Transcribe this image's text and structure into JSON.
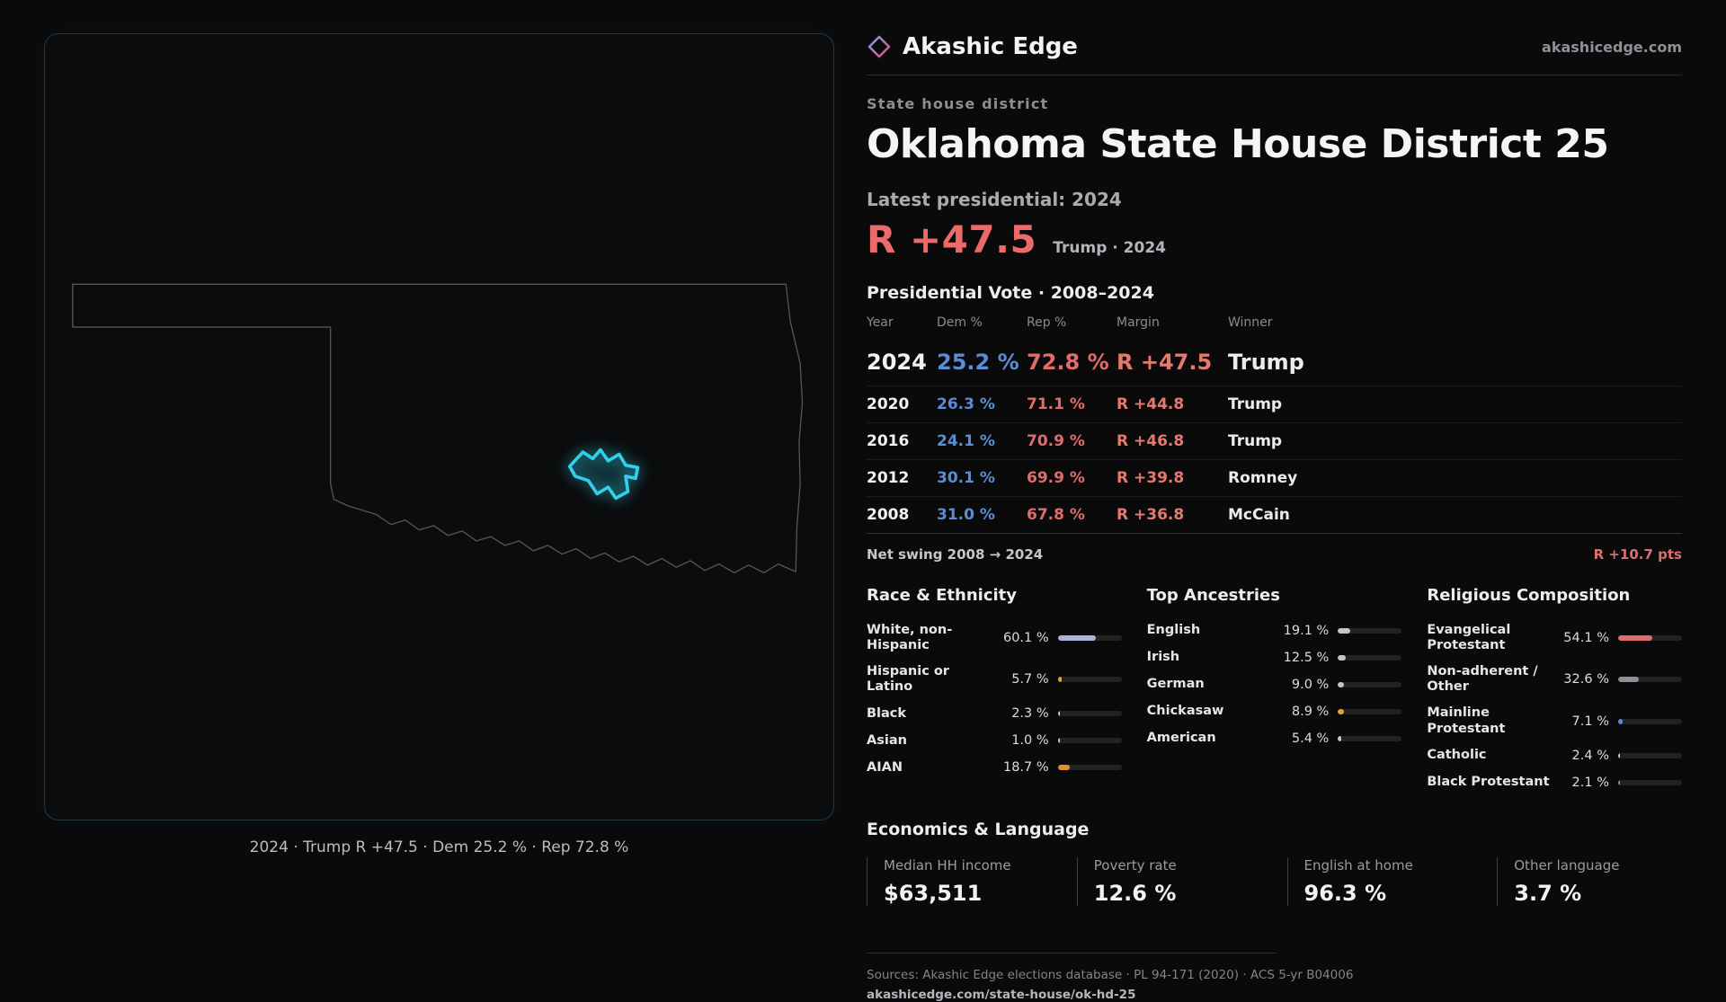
{
  "header": {
    "brand": "Akashic Edge",
    "site": "akashicedge.com",
    "kicker": "State house district",
    "title": "Oklahoma State House District 25"
  },
  "latest": {
    "label": "Latest presidential: 2024",
    "margin": "R +47.5",
    "detail": "Trump · 2024"
  },
  "map": {
    "caption": "2024 · Trump R +47.5 · Dem 25.2 % · Rep 72.8 %"
  },
  "vote_table": {
    "title": "Presidential Vote · 2008–2024",
    "columns": {
      "year": "Year",
      "dem": "Dem %",
      "rep": "Rep %",
      "margin": "Margin",
      "winner": "Winner"
    },
    "rows": [
      {
        "year": "2024",
        "dem": "25.2 %",
        "rep": "72.8 %",
        "margin": "R +47.5",
        "winner": "Trump"
      },
      {
        "year": "2020",
        "dem": "26.3 %",
        "rep": "71.1 %",
        "margin": "R +44.8",
        "winner": "Trump"
      },
      {
        "year": "2016",
        "dem": "24.1 %",
        "rep": "70.9 %",
        "margin": "R +46.8",
        "winner": "Trump"
      },
      {
        "year": "2012",
        "dem": "30.1 %",
        "rep": "69.9 %",
        "margin": "R +39.8",
        "winner": "Romney"
      },
      {
        "year": "2008",
        "dem": "31.0 %",
        "rep": "67.8 %",
        "margin": "R +36.8",
        "winner": "McCain"
      }
    ],
    "net_swing_label": "Net swing 2008 → 2024",
    "net_swing_value": "R +10.7 pts"
  },
  "demographics": {
    "race": {
      "title": "Race & Ethnicity",
      "rows": [
        {
          "label": "White, non-Hispanic",
          "value": "60.1 %",
          "pct": 60.1,
          "color": "#aab6d6"
        },
        {
          "label": "Hispanic or Latino",
          "value": "5.7 %",
          "pct": 5.7,
          "color": "#dca640"
        },
        {
          "label": "Black",
          "value": "2.3 %",
          "pct": 2.3,
          "color": "#c9c9cf"
        },
        {
          "label": "Asian",
          "value": "1.0 %",
          "pct": 1.0,
          "color": "#c9c9cf"
        },
        {
          "label": "AIAN",
          "value": "18.7 %",
          "pct": 18.7,
          "color": "#e0912f"
        }
      ]
    },
    "ancestries": {
      "title": "Top Ancestries",
      "rows": [
        {
          "label": "English",
          "value": "19.1 %",
          "pct": 19.1,
          "color": "#c2c5cc"
        },
        {
          "label": "Irish",
          "value": "12.5 %",
          "pct": 12.5,
          "color": "#c2c5cc"
        },
        {
          "label": "German",
          "value": "9.0 %",
          "pct": 9.0,
          "color": "#c2c5cc"
        },
        {
          "label": "Chickasaw",
          "value": "8.9 %",
          "pct": 8.9,
          "color": "#e0a33c"
        },
        {
          "label": "American",
          "value": "5.4 %",
          "pct": 5.4,
          "color": "#c2c5cc"
        }
      ]
    },
    "religion": {
      "title": "Religious Composition",
      "rows": [
        {
          "label": "Evangelical Protestant",
          "value": "54.1 %",
          "pct": 54.1,
          "color": "#e06c6c"
        },
        {
          "label": "Non-adherent / Other",
          "value": "32.6 %",
          "pct": 32.6,
          "color": "#8f8f98"
        },
        {
          "label": "Mainline Protestant",
          "value": "7.1 %",
          "pct": 7.1,
          "color": "#5b8dd6"
        },
        {
          "label": "Catholic",
          "value": "2.4 %",
          "pct": 2.4,
          "color": "#c9c9cf"
        },
        {
          "label": "Black Protestant",
          "value": "2.1 %",
          "pct": 2.1,
          "color": "#8f8f98"
        }
      ]
    }
  },
  "economics": {
    "title": "Economics & Language",
    "stats": [
      {
        "label": "Median HH income",
        "value": "$63,511"
      },
      {
        "label": "Poverty rate",
        "value": "12.6 %"
      },
      {
        "label": "English at home",
        "value": "96.3 %"
      },
      {
        "label": "Other language",
        "value": "3.7 %"
      }
    ]
  },
  "footer": {
    "sources": "Sources: Akashic Edge elections database · PL 94-171 (2020) · ACS 5-yr B04006",
    "permalink": "akashicedge.com/state-house/ok-hd-25"
  },
  "colors": {
    "dem_blue": "#5b8dd6",
    "rep_red": "#e06c6c",
    "margin_red": "#ed6a6a",
    "district_cyan": "#2fd0ea"
  },
  "chart_data": [
    {
      "type": "table",
      "title": "Presidential Vote · 2008–2024",
      "columns": [
        "Year",
        "Dem %",
        "Rep %",
        "Margin",
        "Winner"
      ],
      "rows": [
        [
          2024,
          25.2,
          72.8,
          "R +47.5",
          "Trump"
        ],
        [
          2020,
          26.3,
          71.1,
          "R +44.8",
          "Trump"
        ],
        [
          2016,
          24.1,
          70.9,
          "R +46.8",
          "Trump"
        ],
        [
          2012,
          30.1,
          69.9,
          "R +39.8",
          "Romney"
        ],
        [
          2008,
          31.0,
          67.8,
          "R +36.8",
          "McCain"
        ]
      ],
      "net_swing_2008_2024": "R +10.7 pts"
    },
    {
      "type": "bar",
      "title": "Race & Ethnicity",
      "categories": [
        "White, non-Hispanic",
        "Hispanic or Latino",
        "Black",
        "Asian",
        "AIAN"
      ],
      "values": [
        60.1,
        5.7,
        2.3,
        1.0,
        18.7
      ],
      "unit": "%",
      "xlim": [
        0,
        100
      ]
    },
    {
      "type": "bar",
      "title": "Top Ancestries",
      "categories": [
        "English",
        "Irish",
        "German",
        "Chickasaw",
        "American"
      ],
      "values": [
        19.1,
        12.5,
        9.0,
        8.9,
        5.4
      ],
      "unit": "%",
      "xlim": [
        0,
        100
      ]
    },
    {
      "type": "bar",
      "title": "Religious Composition",
      "categories": [
        "Evangelical Protestant",
        "Non-adherent / Other",
        "Mainline Protestant",
        "Catholic",
        "Black Protestant"
      ],
      "values": [
        54.1,
        32.6,
        7.1,
        2.4,
        2.1
      ],
      "unit": "%",
      "xlim": [
        0,
        100
      ]
    },
    {
      "type": "table",
      "title": "Economics & Language",
      "columns": [
        "Median HH income",
        "Poverty rate",
        "English at home",
        "Other language"
      ],
      "rows": [
        [
          "$63,511",
          "12.6 %",
          "96.3 %",
          "3.7 %"
        ]
      ]
    }
  ]
}
